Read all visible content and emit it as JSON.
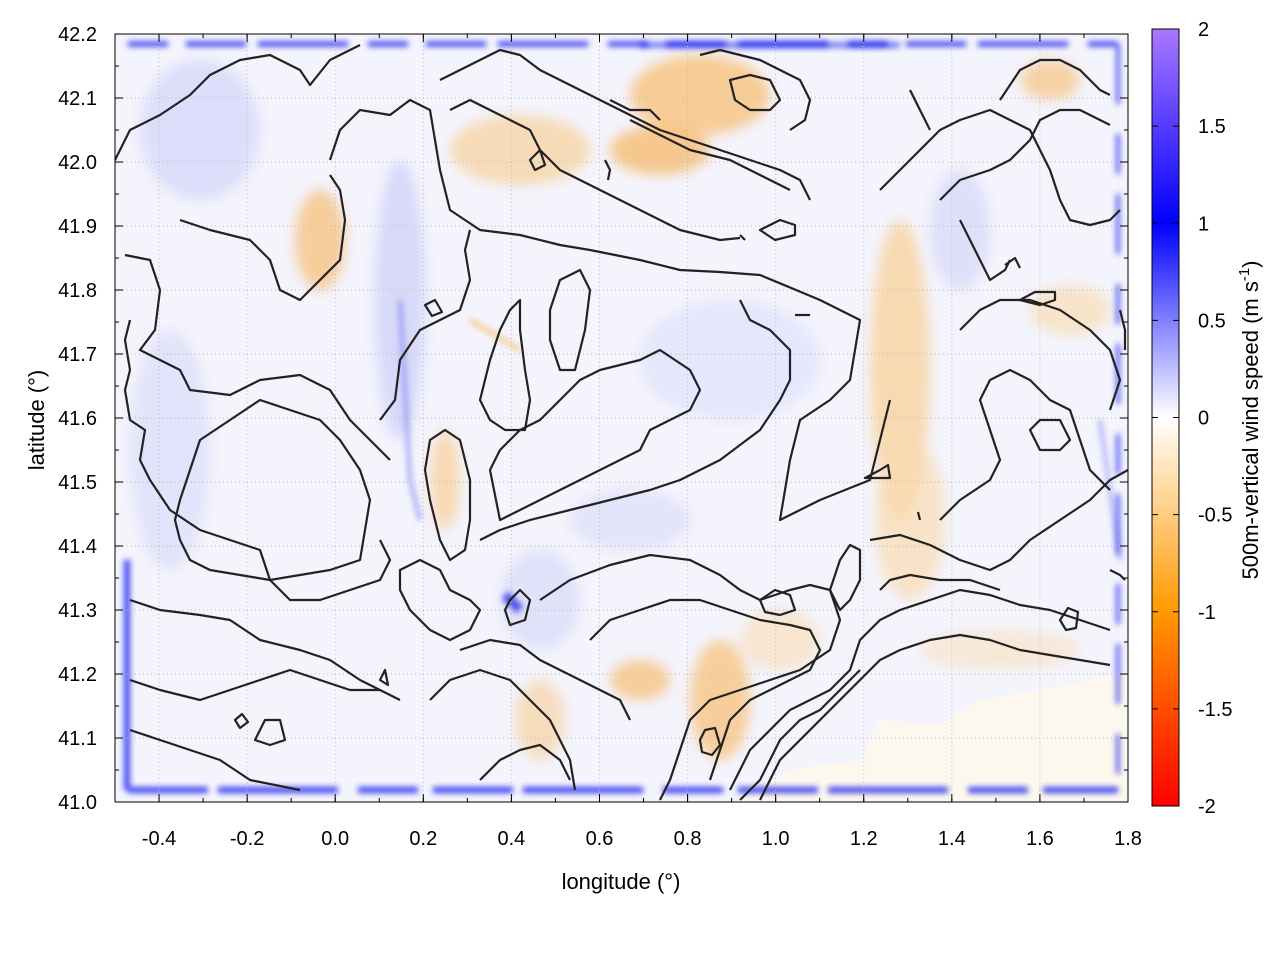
{
  "chart_data": {
    "type": "heatmap",
    "title": "",
    "xlabel": "longitude (°)",
    "ylabel": "latitude (°)",
    "xlim": [
      -0.5,
      1.8
    ],
    "ylim": [
      41.0,
      42.2
    ],
    "x_ticks": [
      "-0.4",
      "-0.2",
      "0.0",
      "0.2",
      "0.4",
      "0.6",
      "0.8",
      "1.0",
      "1.2",
      "1.4",
      "1.6",
      "1.8"
    ],
    "x_tick_values": [
      -0.4,
      -0.2,
      0.0,
      0.2,
      0.4,
      0.6,
      0.8,
      1.0,
      1.2,
      1.4,
      1.6,
      1.8
    ],
    "y_ticks": [
      "41.0",
      "41.1",
      "41.2",
      "41.3",
      "41.4",
      "41.5",
      "41.6",
      "41.7",
      "41.8",
      "41.9",
      "42.0",
      "42.1",
      "42.2"
    ],
    "y_tick_values": [
      41.0,
      41.1,
      41.2,
      41.3,
      41.4,
      41.5,
      41.6,
      41.7,
      41.8,
      41.9,
      42.0,
      42.1,
      42.2
    ],
    "grid": true,
    "colorbar": {
      "label_main": "500m-vertical wind speed (m s",
      "label_sup": "-1",
      "label_end": ")",
      "range": [
        -2,
        2
      ],
      "ticks": [
        "2",
        "1.5",
        "1",
        "0.5",
        "0",
        "-0.5",
        "-1",
        "-1.5",
        "-2"
      ],
      "tick_values": [
        2,
        1.5,
        1,
        0.5,
        0,
        -0.5,
        -1,
        -1.5,
        -2
      ],
      "colors": [
        "#ff0000",
        "#ff9900",
        "#ffffff",
        "#0000ff",
        "#aa77ff"
      ]
    },
    "field_description_values": {
      "boundary_value": 1.2,
      "dominant_range": [
        -0.6,
        0.6
      ]
    },
    "contour_color": "#222222"
  }
}
